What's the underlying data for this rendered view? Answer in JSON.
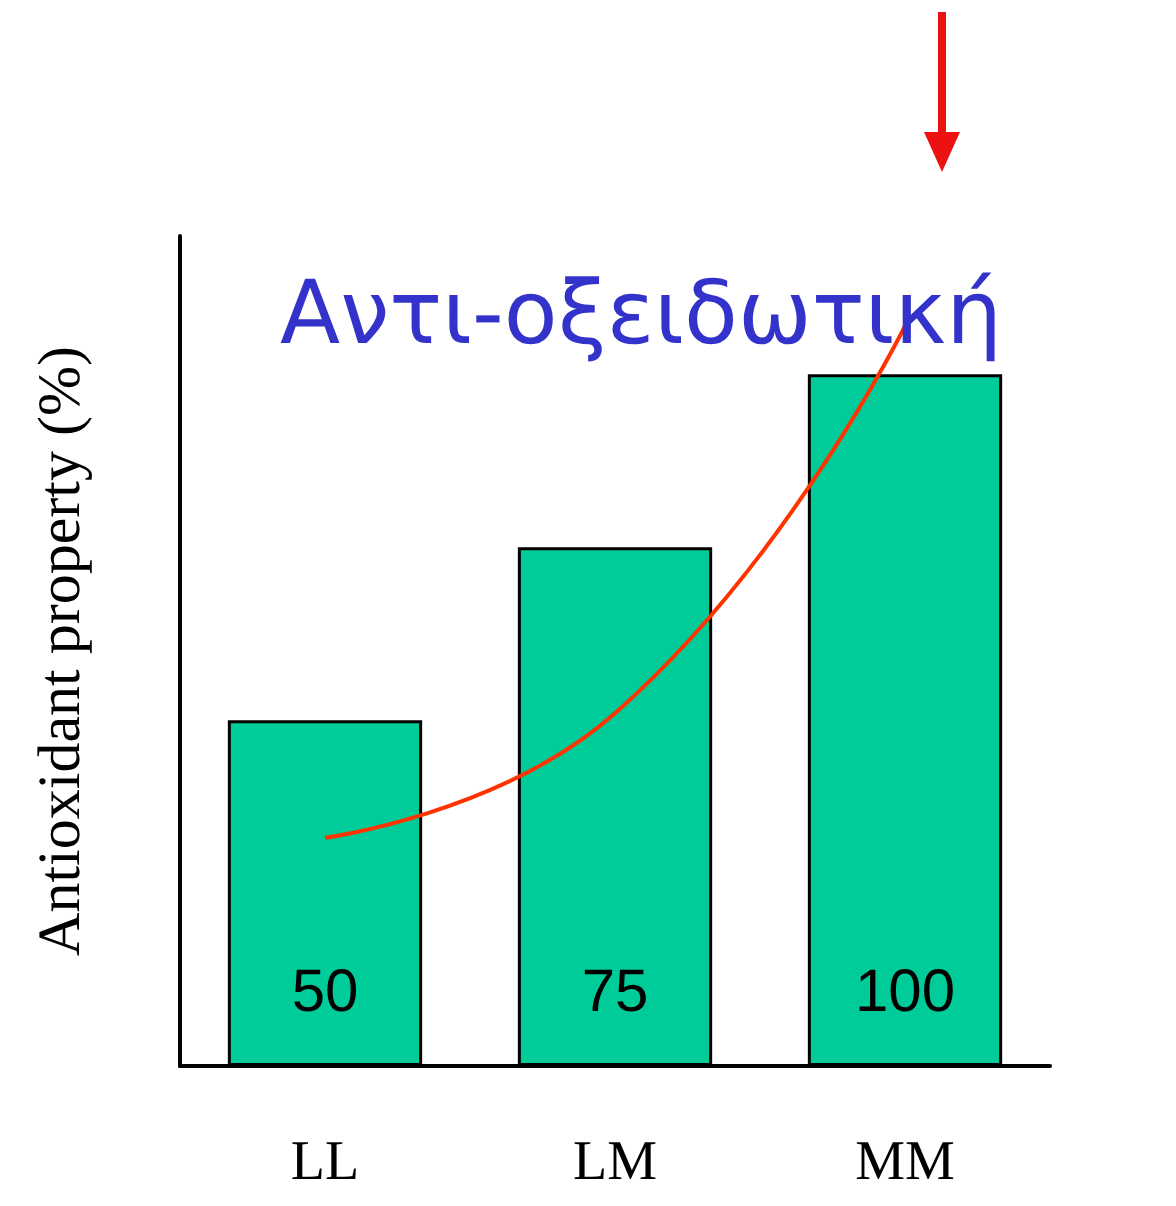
{
  "chart_data": {
    "type": "bar",
    "categories": [
      "LL",
      "LM",
      "MM"
    ],
    "ylabel": "Antioxidant property (%)",
    "series": [
      {
        "color": "#00cc99",
        "values": [
          50,
          75,
          100
        ],
        "data_labels": true
      },
      {
        "type": "line",
        "color": "#ff3300",
        "values": [
          33,
          51,
          107
        ],
        "marker": "none"
      }
    ],
    "annotations": [
      "Αντι-οξειδωτική"
    ],
    "grid": false
  }
}
